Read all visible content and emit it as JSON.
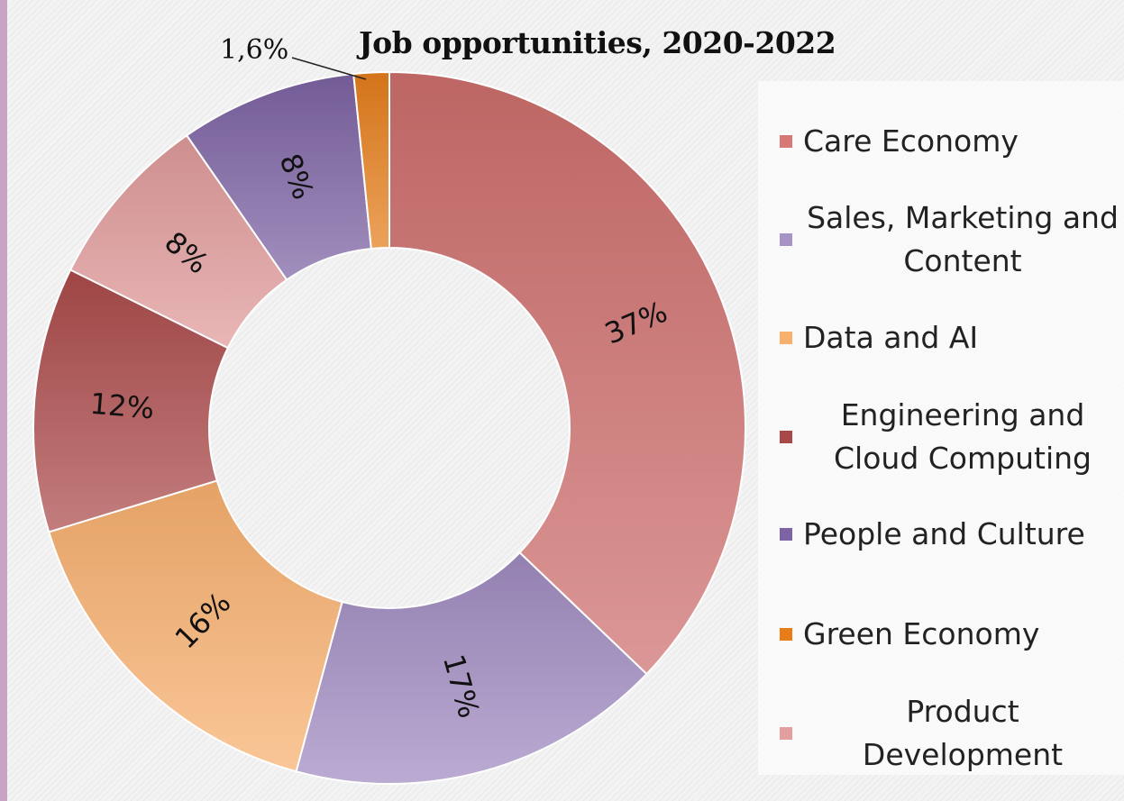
{
  "chart_data": {
    "type": "pie",
    "title": "Job opportunities, 2020-2022",
    "categories": [
      "Care Economy",
      "Sales, Marketing and Content",
      "Data and AI",
      "Engineering and Cloud Computing",
      "People and Culture",
      "Green Economy",
      "Product Development"
    ],
    "slices": [
      {
        "name": "Care Economy",
        "value": 37,
        "label": "37%",
        "color": "#cd6f6d"
      },
      {
        "name": "Sales, Marketing and Content",
        "value": 17,
        "label": "17%",
        "color": "#a08bc0"
      },
      {
        "name": "Data and AI",
        "value": 16,
        "label": "16%",
        "color": "#f8b06f"
      },
      {
        "name": "Engineering and Cloud Computing",
        "value": 12,
        "label": "12%",
        "color": "#ac4b4b"
      },
      {
        "name": "Product Development",
        "value": 8,
        "label": "8%",
        "color": "#e09a9a"
      },
      {
        "name": "People and Culture",
        "value": 8,
        "label": "8%",
        "color": "#7d63a3"
      },
      {
        "name": "Green Economy",
        "value": 1.6,
        "label": "1,6%",
        "color": "#e57e1b"
      }
    ],
    "donut": true,
    "legend_position": "right"
  },
  "legend": {
    "items": [
      {
        "label": "Care Economy",
        "color": "#d77876"
      },
      {
        "label": "Sales, Marketing and\nContent",
        "color": "#a794c7"
      },
      {
        "label": "Data and AI",
        "color": "#f9b06d"
      },
      {
        "label": "Engineering and\nCloud Computing",
        "color": "#a84848"
      },
      {
        "label": "People and Culture",
        "color": "#7c63a3"
      },
      {
        "label": "Green Economy",
        "color": "#e87d17"
      },
      {
        "label": "Product\nDevelopment",
        "color": "#e39e9e"
      }
    ]
  }
}
